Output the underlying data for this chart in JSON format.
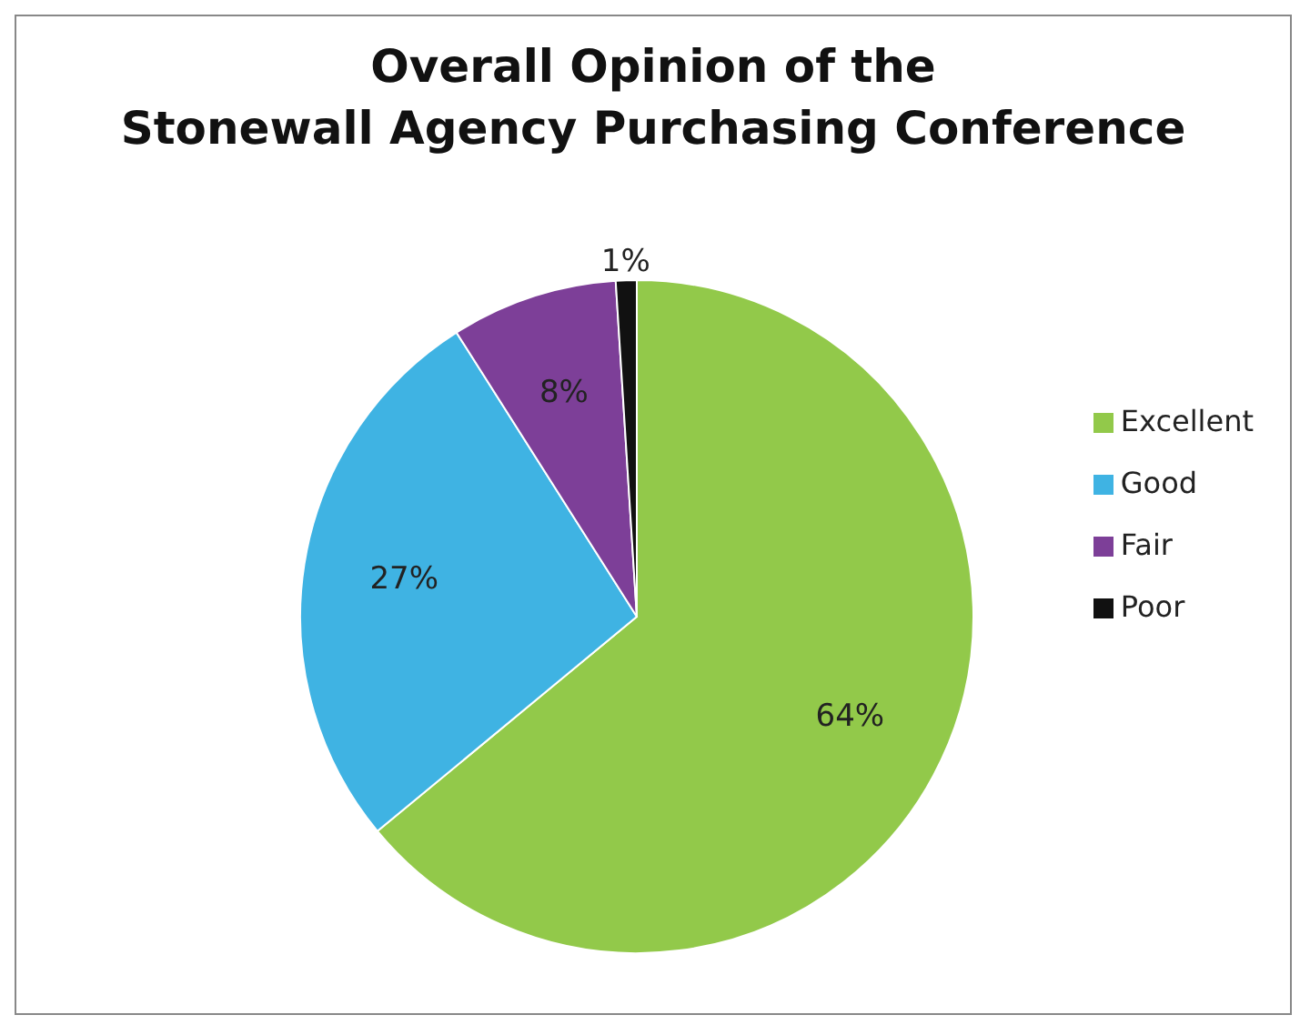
{
  "chart_data": {
    "type": "pie",
    "title": "Overall Opinion of the\nStonewall Agency Purchasing Conference",
    "categories": [
      "Excellent",
      "Good",
      "Fair",
      "Poor"
    ],
    "values": [
      64,
      27,
      8,
      1
    ],
    "value_labels": [
      "64%",
      "27%",
      "8%",
      "1%"
    ],
    "colors": [
      "#92c94a",
      "#3fb3e3",
      "#7d3f98",
      "#111111"
    ],
    "legend": "right"
  }
}
